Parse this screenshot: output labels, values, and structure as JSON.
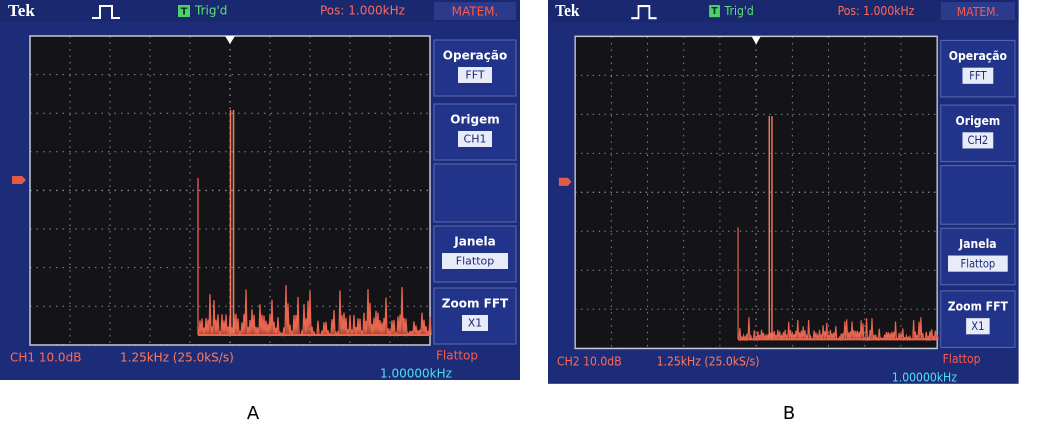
{
  "panels": [
    {
      "label": "A",
      "header": {
        "brand": "Tek",
        "trigger_icon": "T",
        "trigger": "Trig'd",
        "position": "Pos: 1.000kHz",
        "menu_title": "MATEM."
      },
      "menu": [
        {
          "label": "Operação",
          "value": "FFT"
        },
        {
          "label": "Origem",
          "value": "CH1"
        },
        {
          "label": "Janela",
          "value": "Flattop"
        },
        {
          "label": "Zoom FFT",
          "value": "X1"
        }
      ],
      "footer": {
        "scale": "CH1 10.0dB",
        "span": "1.25kHz (25.0kS/s)",
        "window": "Flattop",
        "frequency": "1.00000kHz"
      }
    },
    {
      "label": "B",
      "header": {
        "brand": "Tek",
        "trigger_icon": "T",
        "trigger": "Trig'd",
        "position": "Pos: 1.000kHz",
        "menu_title": "MATEM."
      },
      "menu": [
        {
          "label": "Operação",
          "value": "FFT"
        },
        {
          "label": "Origem",
          "value": "CH2"
        },
        {
          "label": "Janela",
          "value": "Flattop"
        },
        {
          "label": "Zoom FFT",
          "value": "X1"
        }
      ],
      "footer": {
        "scale": "CH2 10.0dB",
        "span": "1.25kHz (25.0kS/s)",
        "window": "Flattop",
        "frequency": "1.00000kHz"
      }
    }
  ]
}
